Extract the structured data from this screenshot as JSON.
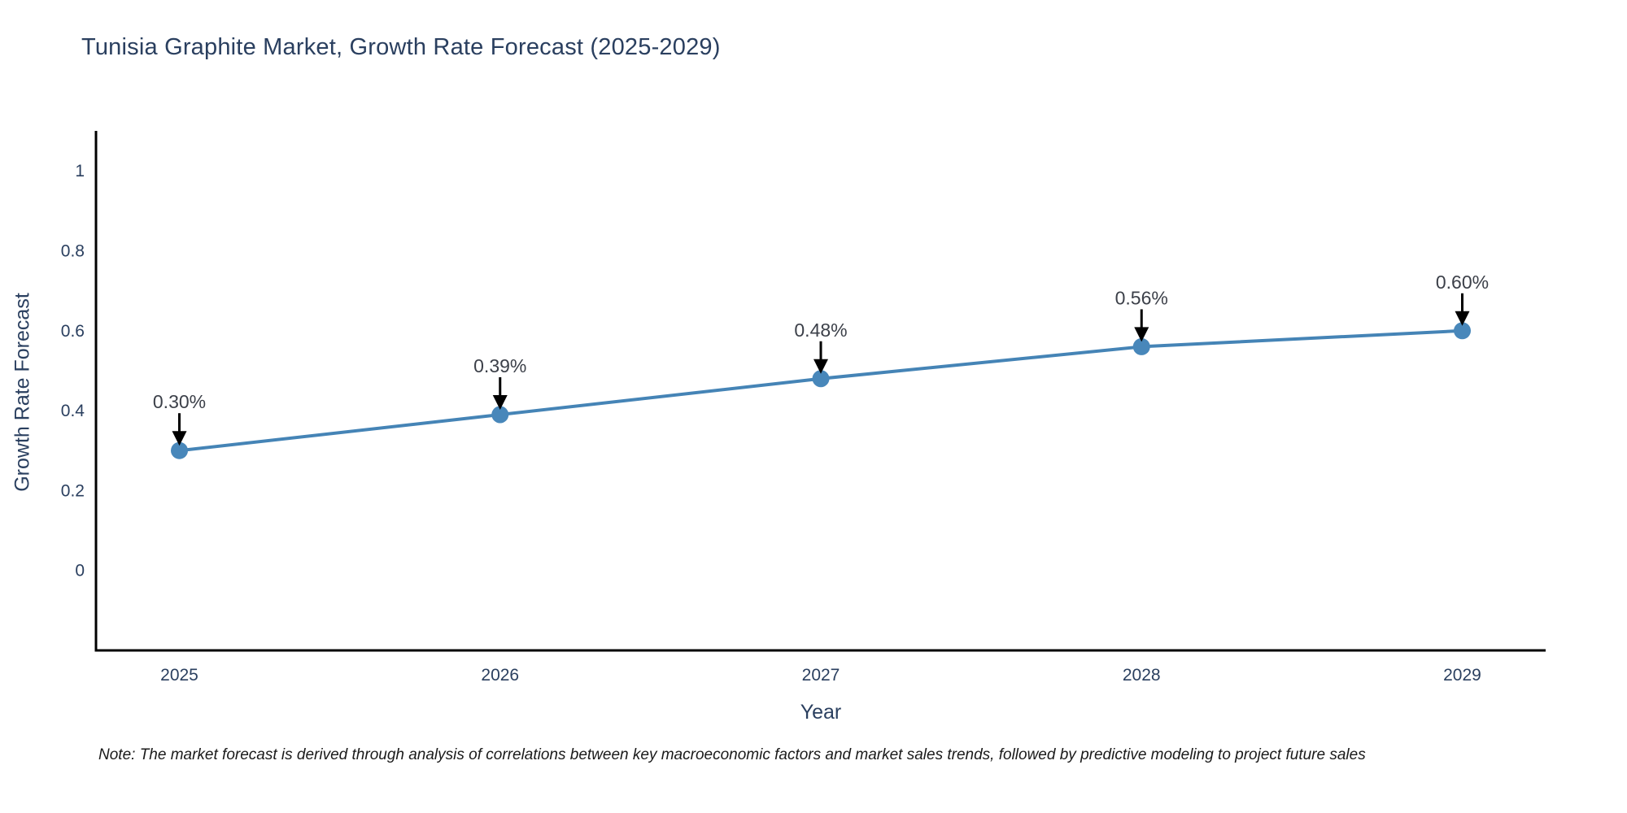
{
  "title": "Tunisia Graphite Market, Growth Rate Forecast (2025-2029)",
  "note": "Note: The market forecast is derived through analysis of correlations between key macroeconomic factors and market sales trends, followed by predictive modeling to project future sales",
  "chart_data": {
    "type": "line",
    "title": "Tunisia Graphite Market, Growth Rate Forecast (2025-2029)",
    "xlabel": "Year",
    "ylabel": "Growth Rate Forecast",
    "x": [
      2025,
      2026,
      2027,
      2028,
      2029
    ],
    "y": [
      0.3,
      0.39,
      0.48,
      0.56,
      0.6
    ],
    "point_labels": [
      "0.30%",
      "0.39%",
      "0.48%",
      "0.56%",
      "0.60%"
    ],
    "x_tick_labels": [
      "2025",
      "2026",
      "2027",
      "2028",
      "2029"
    ],
    "y_tick_values": [
      0,
      0.2,
      0.4,
      0.6,
      0.8,
      1
    ],
    "y_tick_labels": [
      "0",
      "0.2",
      "0.4",
      "0.6",
      "0.8",
      "1"
    ],
    "ylim": [
      -0.2,
      1.1
    ],
    "xlim": [
      2024.74,
      2029.26
    ],
    "grid": false,
    "legend_position": "none",
    "colors": {
      "line": "#4584b6",
      "marker": "#4887ba",
      "axis": "#000000",
      "tick_text": "#2a3f5f",
      "annotation_text": "#3c4049",
      "arrow": "#000000",
      "title_text": "#2a3f5f",
      "background": "#ffffff"
    }
  }
}
